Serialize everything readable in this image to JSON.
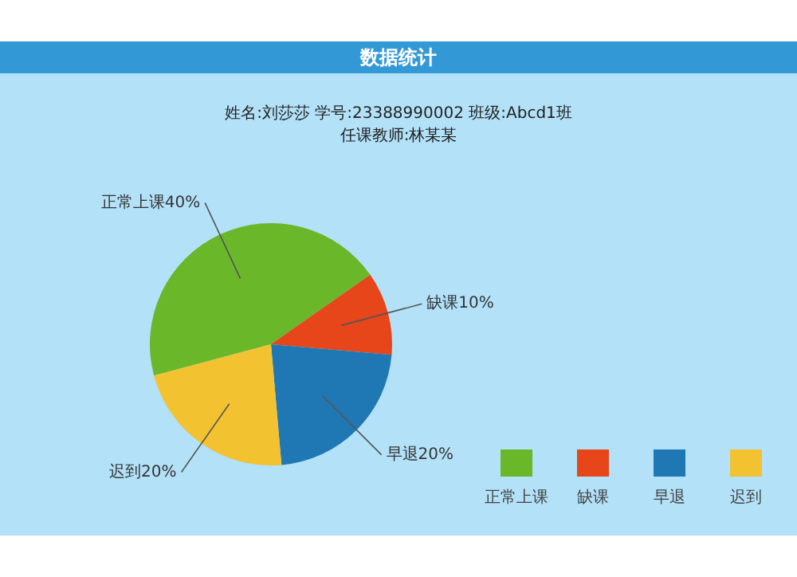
{
  "chart_data": {
    "type": "pie",
    "title": "数据统计",
    "subtitle": "姓名:刘莎莎   学号:23388990002   班级:Abcd1班",
    "annotations": [
      "任课教师:林某某"
    ],
    "categories": [
      "正常上课",
      "缺课",
      "早退",
      "迟到"
    ],
    "values": [
      40,
      10,
      20,
      20
    ],
    "colors": [
      "#6ab72a",
      "#e6461a",
      "#1f78b4",
      "#f2c230"
    ],
    "value_labels": [
      "正常上课40%",
      "缺课10%",
      "早退20%",
      "迟到20%"
    ],
    "legend": "bottom right"
  }
}
